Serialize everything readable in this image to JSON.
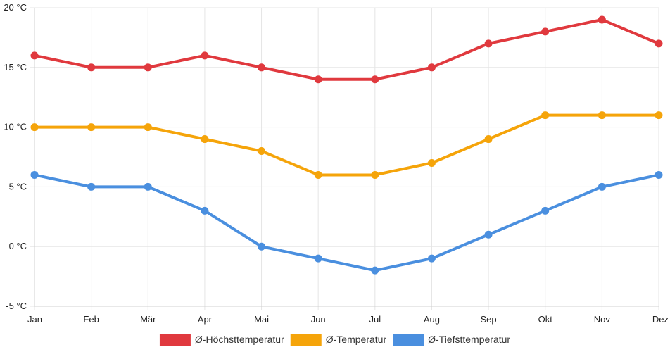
{
  "chart_data": {
    "type": "line",
    "title": "",
    "xlabel": "",
    "ylabel": "",
    "categories": [
      "Jan",
      "Feb",
      "Mär",
      "Apr",
      "Mai",
      "Jun",
      "Jul",
      "Aug",
      "Sep",
      "Okt",
      "Nov",
      "Dez"
    ],
    "ylim": [
      -5,
      20
    ],
    "yticks": [
      -5,
      0,
      5,
      10,
      15,
      20
    ],
    "y_unit": " °C",
    "grid": true,
    "legend_position": "bottom",
    "series": [
      {
        "name": "Ø-Höchsttemperatur",
        "color": "#e0393e",
        "values": [
          16,
          15,
          15,
          16,
          15,
          14,
          14,
          15,
          17,
          18,
          19,
          17
        ]
      },
      {
        "name": "Ø-Temperatur",
        "color": "#f5a40a",
        "values": [
          10,
          10,
          10,
          9,
          8,
          6,
          6,
          7,
          9,
          11,
          11,
          11
        ]
      },
      {
        "name": "Ø-Tiefsttemperatur",
        "color": "#4a8fdf",
        "values": [
          6,
          5,
          5,
          3,
          0,
          -1,
          -2,
          -1,
          1,
          3,
          5,
          6
        ]
      }
    ]
  }
}
